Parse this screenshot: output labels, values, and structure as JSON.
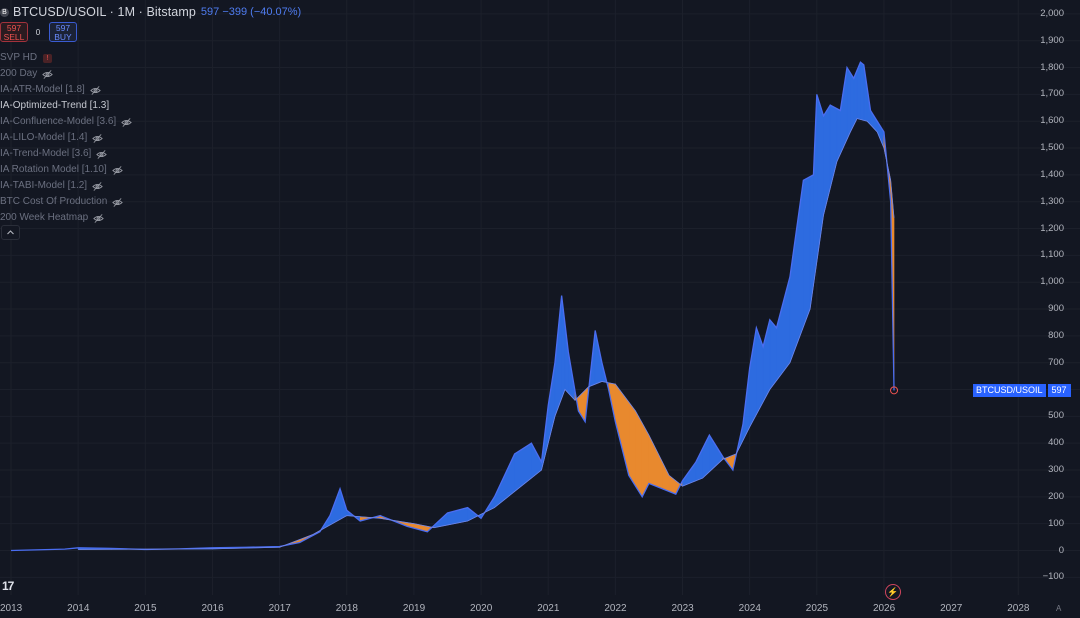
{
  "header": {
    "logo": "B",
    "title": "BTCUSD/USOIL · 1M · Bitstamp",
    "change": "597  −399 (−40.07%)"
  },
  "trade": {
    "sell_price": "597",
    "sell_label": "SELL",
    "spread": "0",
    "buy_price": "597",
    "buy_label": "BUY"
  },
  "indicators": [
    {
      "name": "SVP HD",
      "flag": "error"
    },
    {
      "name": "200 Day",
      "flag": "eye"
    },
    {
      "name": "IA-ATR-Model [1.8]",
      "flag": "eye"
    },
    {
      "name": "IA-Optimized-Trend [1.3]",
      "flag": "none"
    },
    {
      "name": "IA-Confluence-Model [3.6]",
      "flag": "eye"
    },
    {
      "name": "IA-LILO-Model [1.4]",
      "flag": "eye"
    },
    {
      "name": "IA-Trend-Model [3.6]",
      "flag": "eye"
    },
    {
      "name": "IA Rotation Model [1.10]",
      "flag": "eye"
    },
    {
      "name": "IA-TABI-Model [1.2]",
      "flag": "eye"
    },
    {
      "name": "BTC Cost Of Production",
      "flag": "eye"
    },
    {
      "name": "200 Week Heatmap",
      "flag": "eye"
    }
  ],
  "error_mark": "!",
  "y_axis_labels": [
    "2,000",
    "1,900",
    "1,800",
    "1,700",
    "1,600",
    "1,500",
    "1,400",
    "1,300",
    "1,200",
    "1,100",
    "1,000",
    "900",
    "800",
    "700",
    "600",
    "500",
    "400",
    "300",
    "200",
    "100",
    "0",
    "−100"
  ],
  "x_axis_labels": [
    "2013",
    "2014",
    "2015",
    "2016",
    "2017",
    "2018",
    "2019",
    "2020",
    "2021",
    "2022",
    "2023",
    "2024",
    "2025",
    "2026",
    "2027",
    "2028"
  ],
  "price_tag": {
    "label": "BTCUSD/USOIL",
    "value": "597"
  },
  "tv_logo": "17",
  "auto_label": "A",
  "flash_icon": "⚡",
  "colors": {
    "background": "#131722",
    "bull": "#2d6be0",
    "bear": "#e8892e",
    "line": "#4a6df0"
  },
  "chart_data": {
    "type": "area",
    "ylim": [
      -100,
      2000
    ],
    "xlim": [
      2013,
      2028
    ],
    "series": [
      {
        "name": "BTCUSD/USOIL",
        "x": [
          2013.0,
          2013.8,
          2014.0,
          2014.5,
          2015.0,
          2015.5,
          2016.0,
          2016.5,
          2017.0,
          2017.3,
          2017.6,
          2017.75,
          2017.9,
          2018.0,
          2018.2,
          2018.5,
          2018.9,
          2019.2,
          2019.5,
          2019.8,
          2020.0,
          2020.2,
          2020.5,
          2020.75,
          2020.9,
          2021.0,
          2021.1,
          2021.2,
          2021.3,
          2021.45,
          2021.55,
          2021.7,
          2021.8,
          2021.9,
          2022.0,
          2022.2,
          2022.4,
          2022.5,
          2022.7,
          2022.9,
          2023.0,
          2023.2,
          2023.4,
          2023.6,
          2023.75,
          2023.9,
          2024.0,
          2024.1,
          2024.2,
          2024.3,
          2024.4,
          2024.6,
          2024.8,
          2024.95,
          2025.0,
          2025.1,
          2025.2,
          2025.35,
          2025.45,
          2025.55,
          2025.65,
          2025.7,
          2025.8,
          2025.9,
          2026.0,
          2026.1,
          2026.15
        ],
        "y": [
          0,
          5,
          10,
          8,
          4,
          6,
          10,
          12,
          15,
          30,
          70,
          130,
          230,
          150,
          110,
          130,
          90,
          70,
          140,
          160,
          120,
          200,
          360,
          400,
          330,
          540,
          700,
          950,
          740,
          520,
          480,
          820,
          700,
          600,
          480,
          280,
          200,
          250,
          230,
          210,
          260,
          330,
          430,
          350,
          300,
          470,
          680,
          830,
          760,
          860,
          830,
          1020,
          1380,
          1400,
          1700,
          1620,
          1660,
          1640,
          1800,
          1760,
          1820,
          1810,
          1640,
          1600,
          1560,
          1300,
          597
        ]
      },
      {
        "name": "",
        "x": [
          2014.0,
          2016.0,
          2017.0,
          2017.5,
          2018.0,
          2018.5,
          2019.0,
          2019.3,
          2019.8,
          2020.2,
          2020.5,
          2020.9,
          2021.1,
          2021.25,
          2021.4,
          2021.6,
          2021.8,
          2022.0,
          2022.3,
          2022.5,
          2022.8,
          2023.0,
          2023.3,
          2023.6,
          2023.8,
          2024.0,
          2024.3,
          2024.6,
          2024.9,
          2025.1,
          2025.3,
          2025.5,
          2025.6,
          2025.75,
          2025.9,
          2026.0,
          2026.1,
          2026.15
        ],
        "y": [
          4,
          6,
          12,
          60,
          130,
          120,
          100,
          85,
          110,
          160,
          220,
          300,
          500,
          600,
          560,
          610,
          630,
          620,
          520,
          430,
          280,
          240,
          270,
          340,
          360,
          460,
          600,
          700,
          900,
          1250,
          1450,
          1560,
          1610,
          1600,
          1560,
          1500,
          1380,
          1240
        ]
      }
    ]
  }
}
